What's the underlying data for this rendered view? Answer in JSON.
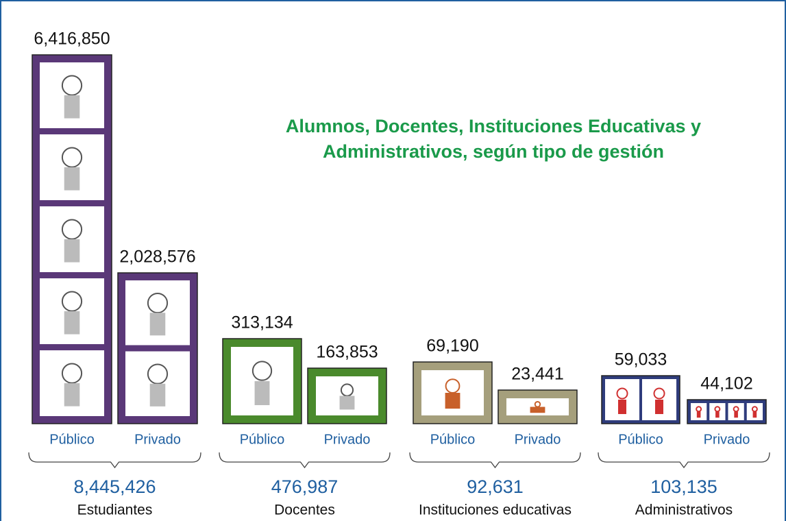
{
  "title": [
    "Alumnos, Docentes, Instituciones Educativas y",
    "Administrativos, según tipo de gestión"
  ],
  "groups": [
    {
      "name": "Estudiantes",
      "total": "8,445,426",
      "items": [
        {
          "label": "Público",
          "value": "6,416,850"
        },
        {
          "label": "Privado",
          "value": "2,028,576"
        }
      ]
    },
    {
      "name": "Docentes",
      "total": "476,987",
      "items": [
        {
          "label": "Público",
          "value": "313,134"
        },
        {
          "label": "Privado",
          "value": "163,853"
        }
      ]
    },
    {
      "name": "Instituciones educativas",
      "total": "92,631",
      "items": [
        {
          "label": "Público",
          "value": "69,190"
        },
        {
          "label": "Privado",
          "value": "23,441"
        }
      ]
    },
    {
      "name": "Administrativos",
      "total": "103,135",
      "items": [
        {
          "label": "Público",
          "value": "59,033"
        },
        {
          "label": "Privado",
          "value": "44,102"
        }
      ]
    }
  ]
}
